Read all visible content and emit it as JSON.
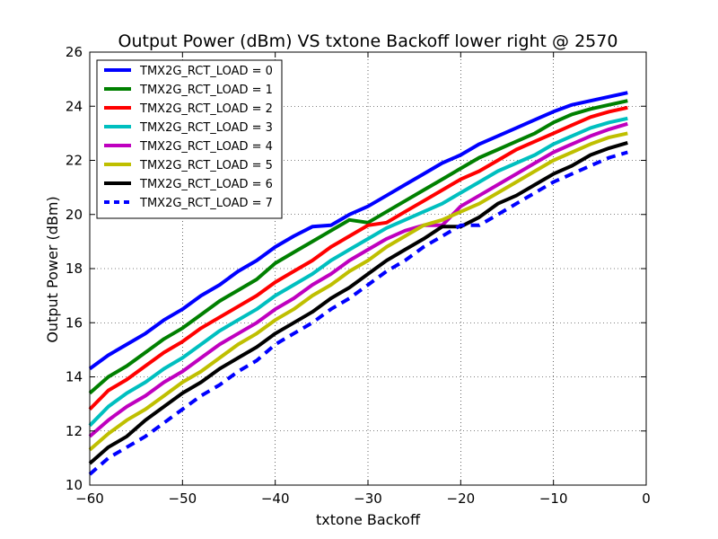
{
  "chart_data": {
    "type": "line",
    "title": "Output Power (dBm) VS txtone Backoff lower right @ 2570",
    "xlabel": "txtone Backoff",
    "ylabel": "Output Power (dBm)",
    "xlim": [
      -60,
      0
    ],
    "ylim": [
      10,
      26
    ],
    "xticks": [
      -60,
      -50,
      -40,
      -30,
      -20,
      -10,
      0
    ],
    "yticks": [
      10,
      12,
      14,
      16,
      18,
      20,
      22,
      24,
      26
    ],
    "grid": true,
    "legend_position": "top-left",
    "x": [
      -60,
      -58,
      -56,
      -54,
      -52,
      -50,
      -48,
      -46,
      -44,
      -42,
      -40,
      -38,
      -36,
      -34,
      -32,
      -30,
      -28,
      -26,
      -24,
      -22,
      -20,
      -18,
      -16,
      -14,
      -12,
      -10,
      -8,
      -6,
      -4,
      -2
    ],
    "series": [
      {
        "name": "TMX2G_RCT_LOAD = 0",
        "color": "#0000ff",
        "dashed": false,
        "values": [
          14.3,
          14.8,
          15.2,
          15.6,
          16.1,
          16.5,
          17.0,
          17.4,
          17.9,
          18.3,
          18.8,
          19.2,
          19.55,
          19.6,
          20.0,
          20.3,
          20.7,
          21.1,
          21.5,
          21.9,
          22.2,
          22.6,
          22.9,
          23.2,
          23.5,
          23.8,
          24.05,
          24.2,
          24.35,
          24.5
        ]
      },
      {
        "name": "TMX2G_RCT_LOAD = 1",
        "color": "#008000",
        "dashed": false,
        "values": [
          13.4,
          14.0,
          14.4,
          14.9,
          15.4,
          15.8,
          16.3,
          16.8,
          17.2,
          17.6,
          18.2,
          18.6,
          19.0,
          19.4,
          19.8,
          19.7,
          20.1,
          20.5,
          20.9,
          21.3,
          21.7,
          22.1,
          22.4,
          22.7,
          23.0,
          23.4,
          23.7,
          23.9,
          24.05,
          24.2
        ]
      },
      {
        "name": "TMX2G_RCT_LOAD = 2",
        "color": "#ff0000",
        "dashed": false,
        "values": [
          12.8,
          13.5,
          13.9,
          14.4,
          14.9,
          15.3,
          15.8,
          16.2,
          16.6,
          17.0,
          17.5,
          17.9,
          18.3,
          18.8,
          19.2,
          19.6,
          19.7,
          20.1,
          20.5,
          20.9,
          21.3,
          21.6,
          22.0,
          22.4,
          22.7,
          23.0,
          23.3,
          23.6,
          23.8,
          23.95
        ]
      },
      {
        "name": "TMX2G_RCT_LOAD = 3",
        "color": "#00bfbf",
        "dashed": false,
        "values": [
          12.2,
          12.9,
          13.4,
          13.8,
          14.3,
          14.7,
          15.2,
          15.7,
          16.1,
          16.5,
          17.0,
          17.4,
          17.8,
          18.3,
          18.7,
          19.1,
          19.5,
          19.8,
          20.1,
          20.4,
          20.8,
          21.2,
          21.6,
          21.9,
          22.2,
          22.6,
          22.9,
          23.2,
          23.4,
          23.55
        ]
      },
      {
        "name": "TMX2G_RCT_LOAD = 4",
        "color": "#bf00bf",
        "dashed": false,
        "values": [
          11.8,
          12.4,
          12.9,
          13.3,
          13.8,
          14.2,
          14.7,
          15.2,
          15.6,
          16.0,
          16.5,
          16.9,
          17.4,
          17.8,
          18.3,
          18.7,
          19.1,
          19.4,
          19.6,
          19.6,
          20.3,
          20.7,
          21.1,
          21.5,
          21.9,
          22.3,
          22.6,
          22.9,
          23.15,
          23.35
        ]
      },
      {
        "name": "TMX2G_RCT_LOAD = 5",
        "color": "#bfbf00",
        "dashed": false,
        "values": [
          11.3,
          11.9,
          12.4,
          12.8,
          13.3,
          13.8,
          14.2,
          14.7,
          15.2,
          15.6,
          16.1,
          16.5,
          17.0,
          17.4,
          17.9,
          18.3,
          18.8,
          19.2,
          19.6,
          19.8,
          20.1,
          20.4,
          20.8,
          21.2,
          21.6,
          22.0,
          22.3,
          22.6,
          22.85,
          23.0
        ]
      },
      {
        "name": "TMX2G_RCT_LOAD = 6",
        "color": "#000000",
        "dashed": false,
        "values": [
          10.8,
          11.4,
          11.8,
          12.4,
          12.9,
          13.4,
          13.8,
          14.3,
          14.7,
          15.1,
          15.6,
          16.0,
          16.4,
          16.9,
          17.3,
          17.8,
          18.3,
          18.7,
          19.1,
          19.55,
          19.55,
          19.9,
          20.4,
          20.7,
          21.1,
          21.5,
          21.8,
          22.2,
          22.45,
          22.65
        ]
      },
      {
        "name": "TMX2G_RCT_LOAD = 7",
        "color": "#0000ff",
        "dashed": true,
        "values": [
          10.4,
          11.0,
          11.4,
          11.8,
          12.3,
          12.8,
          13.3,
          13.7,
          14.2,
          14.6,
          15.2,
          15.6,
          16.0,
          16.5,
          16.9,
          17.4,
          17.9,
          18.3,
          18.8,
          19.2,
          19.6,
          19.6,
          20.0,
          20.4,
          20.8,
          21.2,
          21.5,
          21.8,
          22.1,
          22.3
        ]
      }
    ]
  }
}
